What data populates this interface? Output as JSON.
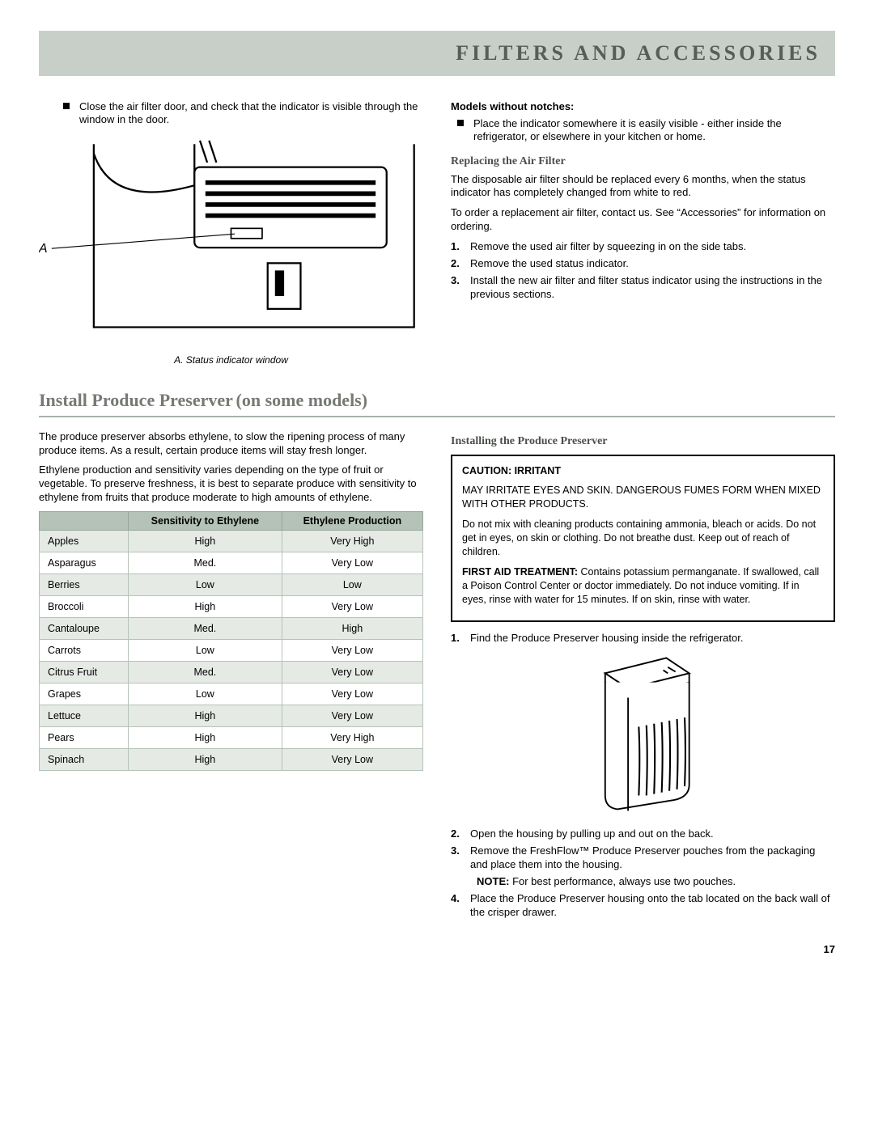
{
  "header": {
    "title": "FILTERS AND ACCESSORIES"
  },
  "top": {
    "left_bullet": "Close the air filter door, and check that the indicator is visible through the window in the door.",
    "diagram_label": "A",
    "caption": "A. Status indicator window",
    "right_heading": "Models without notches:",
    "right_bullet": "Place the indicator somewhere it is easily visible - either inside the refrigerator, or elsewhere in your kitchen or home.",
    "replacing_h": "Replacing the Air Filter",
    "replacing_p1": "The disposable air filter should be replaced every 6 months, when the status indicator has completely changed from white to red.",
    "replacing_p2": "To order a replacement air filter, contact us. See “Accessories” for information on ordering.",
    "steps": [
      "Remove the used air filter by squeezing in on the side tabs.",
      "Remove the used status indicator.",
      "Install the new air filter and filter status indicator using the instructions in the previous sections."
    ]
  },
  "section2": {
    "title_main": "Install Produce Preserver",
    "title_sub": "(on some models)",
    "left_p1": "The produce preserver absorbs ethylene, to slow the ripening process of many produce items. As a result, certain produce items will stay fresh longer.",
    "left_p2": "Ethylene production and sensitivity varies depending on the type of fruit or vegetable. To preserve freshness, it is best to separate produce with sensitivity to ethylene from fruits that produce moderate to high amounts of ethylene.",
    "table": {
      "col1": "",
      "col2": "Sensitivity to Ethylene",
      "col3": "Ethylene Production",
      "rows": [
        [
          "Apples",
          "High",
          "Very High"
        ],
        [
          "Asparagus",
          "Med.",
          "Very Low"
        ],
        [
          "Berries",
          "Low",
          "Low"
        ],
        [
          "Broccoli",
          "High",
          "Very Low"
        ],
        [
          "Cantaloupe",
          "Med.",
          "High"
        ],
        [
          "Carrots",
          "Low",
          "Very Low"
        ],
        [
          "Citrus Fruit",
          "Med.",
          "Very Low"
        ],
        [
          "Grapes",
          "Low",
          "Very Low"
        ],
        [
          "Lettuce",
          "High",
          "Very Low"
        ],
        [
          "Pears",
          "High",
          "Very High"
        ],
        [
          "Spinach",
          "High",
          "Very Low"
        ]
      ]
    },
    "right_h": "Installing the Produce Preserver",
    "caution": {
      "title": "CAUTION: IRRITANT",
      "p1": "MAY IRRITATE EYES AND SKIN. DANGEROUS FUMES FORM WHEN MIXED WITH OTHER PRODUCTS.",
      "p2": "Do not mix with cleaning products containing ammonia, bleach or acids. Do not get in eyes, on skin or clothing. Do not breathe dust. Keep out of reach of children.",
      "p3_prefix": "FIRST AID TREATMENT:",
      "p3": " Contains potassium permanganate. If swallowed, call a Poison Control Center or doctor immediately. Do not induce vomiting. If in eyes, rinse with water for 15 minutes. If on skin, rinse with water."
    },
    "steps": [
      "Find the Produce Preserver housing inside the refrigerator.",
      "Open the housing by pulling up and out on the back.",
      "Remove the FreshFlow™ Produce Preserver pouches from the packaging and place them into the housing.",
      "Place the Produce Preserver housing onto the tab located on the back wall of the crisper drawer."
    ],
    "note_prefix": "NOTE:",
    "note": " For best performance, always use two pouches."
  },
  "page_number": "17"
}
